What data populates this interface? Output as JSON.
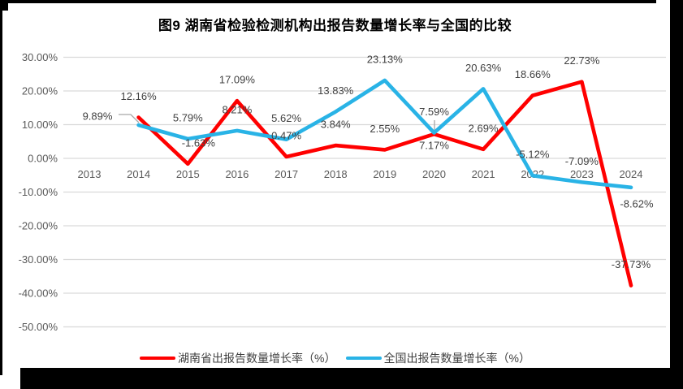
{
  "title": "图9 湖南省检验检测机构出报告数量增长率与全国的比较",
  "chart_data": {
    "type": "line",
    "title": "图9 湖南省检验检测机构出报告数量增长率与全国的比较",
    "categories": [
      "2013",
      "2014",
      "2015",
      "2016",
      "2017",
      "2018",
      "2019",
      "2020",
      "2021",
      "2022",
      "2023",
      "2024"
    ],
    "y_axis": {
      "ticks": [
        "30.00%",
        "20.00%",
        "10.00%",
        "0.00%",
        "-10.00%",
        "-20.00%",
        "-30.00%",
        "-40.00%",
        "-50.00%"
      ],
      "tick_values": [
        30,
        20,
        10,
        0,
        -10,
        -20,
        -30,
        -40,
        -50
      ],
      "min": -50,
      "max": 30
    },
    "grid": true,
    "legend_position": "bottom",
    "series": [
      {
        "name": "湖南省出报告数量增长率（%）",
        "color": "#FF0000",
        "values": [
          null,
          12.16,
          -1.63,
          17.09,
          0.47,
          3.84,
          2.55,
          7.17,
          2.69,
          18.66,
          22.73,
          -37.73
        ],
        "labels": [
          null,
          "12.16%",
          "-1.63%",
          "17.09%",
          "0.47%",
          "3.84%",
          "2.55%",
          "7.17%",
          "2.69%",
          "18.66%",
          "22.73%",
          "-37.73%"
        ]
      },
      {
        "name": "全国出报告数量增长率（%）",
        "color": "#29B3E6",
        "values": [
          null,
          9.89,
          5.79,
          8.21,
          5.62,
          13.83,
          23.13,
          7.59,
          20.63,
          -5.12,
          -7.09,
          -8.62
        ],
        "labels": [
          null,
          "9.89%",
          "5.79%",
          "8.21%",
          "5.62%",
          "13.83%",
          "23.13%",
          "7.59%",
          "20.63%",
          "-5.12%",
          "-7.09%",
          "-8.62%"
        ]
      }
    ],
    "colors": {
      "gridline": "#D9D9D9",
      "axis_text": "#595959",
      "label_text": "#404040",
      "leader": "#A6A6A6",
      "title_text": "#000000"
    }
  }
}
